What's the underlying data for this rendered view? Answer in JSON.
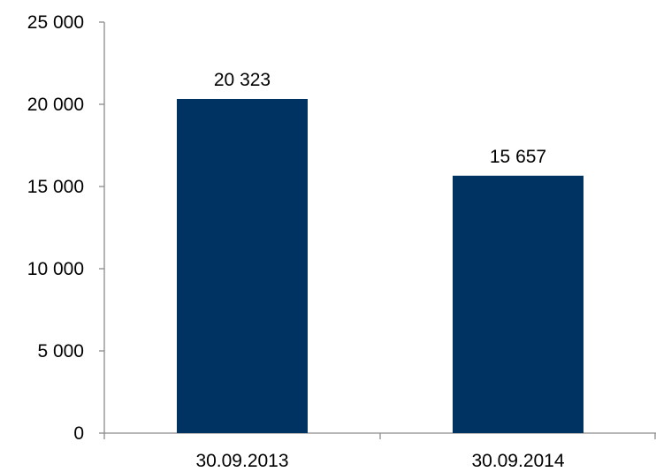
{
  "chart_data": {
    "type": "bar",
    "categories": [
      "30.09.2013",
      "30.09.2014"
    ],
    "values": [
      20323,
      15657
    ],
    "value_labels": [
      "20 323",
      "15 657"
    ],
    "title": "",
    "xlabel": "",
    "ylabel": "",
    "ylim": [
      0,
      25000
    ],
    "yticks": [
      0,
      5000,
      10000,
      15000,
      20000,
      25000
    ],
    "ytick_labels": [
      "0",
      "5 000",
      "10 000",
      "15 000",
      "20 000",
      "25 000"
    ],
    "grid": false,
    "legend": "none",
    "bar_color": "#003362",
    "axis_color": "#8c8c8c"
  }
}
